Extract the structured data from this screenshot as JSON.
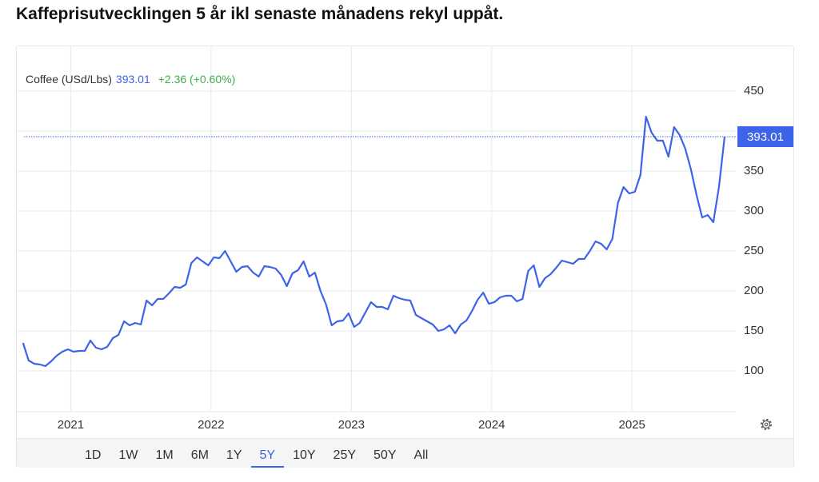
{
  "chart_data": {
    "type": "line",
    "title": "Kaffeprisutvecklingen 5 år ikl senaste månadens rekyl uppåt.",
    "change": "+2.36 (+0.60%)",
    "change_color": "#3fae49",
    "series": [
      {
        "name": "Coffee (USd/Lbs)",
        "color": "#3d63e8",
        "x": [
          2020.66,
          2020.7,
          2020.74,
          2020.78,
          2020.82,
          2020.86,
          2020.9,
          2020.94,
          2020.98,
          2021.02,
          2021.06,
          2021.1,
          2021.14,
          2021.18,
          2021.22,
          2021.26,
          2021.3,
          2021.34,
          2021.38,
          2021.42,
          2021.46,
          2021.5,
          2021.54,
          2021.58,
          2021.62,
          2021.66,
          2021.7,
          2021.74,
          2021.78,
          2021.82,
          2021.86,
          2021.9,
          2021.94,
          2021.98,
          2022.02,
          2022.06,
          2022.1,
          2022.14,
          2022.18,
          2022.22,
          2022.26,
          2022.3,
          2022.34,
          2022.38,
          2022.42,
          2022.46,
          2022.5,
          2022.54,
          2022.58,
          2022.62,
          2022.66,
          2022.7,
          2022.74,
          2022.78,
          2022.82,
          2022.86,
          2022.9,
          2022.94,
          2022.98,
          2023.02,
          2023.06,
          2023.1,
          2023.14,
          2023.18,
          2023.22,
          2023.26,
          2023.3,
          2023.34,
          2023.38,
          2023.42,
          2023.46,
          2023.5,
          2023.54,
          2023.58,
          2023.62,
          2023.66,
          2023.7,
          2023.74,
          2023.78,
          2023.82,
          2023.86,
          2023.9,
          2023.94,
          2023.98,
          2024.02,
          2024.06,
          2024.1,
          2024.14,
          2024.18,
          2024.22,
          2024.26,
          2024.3,
          2024.34,
          2024.38,
          2024.42,
          2024.46,
          2024.5,
          2024.54,
          2024.58,
          2024.62,
          2024.66,
          2024.7,
          2024.74,
          2024.78,
          2024.82,
          2024.86,
          2024.9,
          2024.94,
          2024.98,
          2025.02,
          2025.06,
          2025.1,
          2025.14,
          2025.18,
          2025.22,
          2025.26,
          2025.3,
          2025.34,
          2025.38,
          2025.42,
          2025.46,
          2025.5,
          2025.54,
          2025.58,
          2025.62,
          2025.66
        ],
        "values": [
          135,
          113,
          109,
          108,
          106,
          112,
          119,
          124,
          127,
          124,
          125,
          125,
          138,
          129,
          127,
          130,
          141,
          145,
          162,
          157,
          160,
          158,
          188,
          182,
          190,
          190,
          197,
          205,
          204,
          208,
          235,
          242,
          237,
          232,
          242,
          241,
          250,
          237,
          224,
          230,
          231,
          223,
          218,
          231,
          230,
          228,
          220,
          206,
          222,
          226,
          237,
          218,
          223,
          200,
          183,
          157,
          162,
          163,
          172,
          155,
          160,
          173,
          186,
          180,
          180,
          177,
          194,
          191,
          189,
          188,
          170,
          166,
          162,
          158,
          150,
          152,
          157,
          147,
          158,
          163,
          175,
          189,
          198,
          184,
          186,
          192,
          194,
          194,
          187,
          190,
          225,
          232,
          205,
          216,
          221,
          229,
          238,
          236,
          234,
          240,
          240,
          250,
          262,
          259,
          252,
          265,
          310,
          330,
          322,
          324,
          345,
          418,
          398,
          388,
          388,
          368,
          405,
          395,
          378,
          352,
          320,
          292,
          295,
          286,
          330,
          393.01
        ]
      }
    ],
    "xlim": [
      2020.61,
      2025.74
    ],
    "xticks": [
      2021,
      2022,
      2023,
      2024,
      2025
    ],
    "ylim": [
      50,
      500
    ],
    "yticks": [
      100,
      150,
      200,
      250,
      300,
      350,
      400,
      450
    ],
    "grid": true,
    "ranges": [
      "1D",
      "1W",
      "1M",
      "6M",
      "1Y",
      "5Y",
      "10Y",
      "25Y",
      "50Y",
      "All"
    ],
    "selected_range": 5
  }
}
